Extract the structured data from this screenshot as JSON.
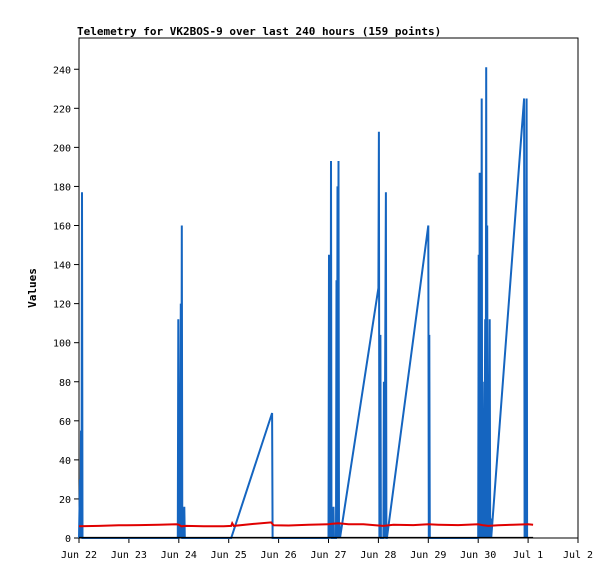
{
  "chart_data": {
    "type": "line",
    "title": "Telemetry for VK2BOS-9 over last 240 hours (159 points)",
    "xlabel": "",
    "ylabel": "Values",
    "x_ticks": [
      "Jun 22",
      "Jun 23",
      "Jun 24",
      "Jun 25",
      "Jun 26",
      "Jun 27",
      "Jun 28",
      "Jun 29",
      "Jun 30",
      "Jul 1",
      "Jul 2"
    ],
    "y_ticks": [
      0,
      20,
      40,
      60,
      80,
      100,
      120,
      140,
      160,
      180,
      200,
      220,
      240
    ],
    "xlim_days": [
      0,
      10
    ],
    "ylim": [
      0,
      256
    ],
    "grid": false,
    "legend": "none",
    "series": [
      {
        "color": "#1565C0",
        "points": [
          [
            0.0,
            0
          ],
          [
            0.02,
            30
          ],
          [
            0.03,
            0
          ],
          [
            0.04,
            55
          ],
          [
            0.05,
            0
          ],
          [
            0.06,
            177
          ],
          [
            0.07,
            0
          ],
          [
            1.98,
            0
          ],
          [
            1.99,
            112
          ],
          [
            2.0,
            0
          ],
          [
            2.01,
            40
          ],
          [
            2.02,
            0
          ],
          [
            2.04,
            120
          ],
          [
            2.05,
            0
          ],
          [
            2.06,
            160
          ],
          [
            2.07,
            0
          ],
          [
            2.1,
            0
          ],
          [
            2.11,
            16
          ],
          [
            2.12,
            0
          ],
          [
            3.05,
            0
          ],
          [
            3.87,
            64
          ],
          [
            3.88,
            0
          ],
          [
            5.0,
            0
          ],
          [
            5.01,
            145
          ],
          [
            5.02,
            0
          ],
          [
            5.03,
            48
          ],
          [
            5.04,
            0
          ],
          [
            5.05,
            193
          ],
          [
            5.06,
            0
          ],
          [
            5.09,
            0
          ],
          [
            5.1,
            16
          ],
          [
            5.11,
            0
          ],
          [
            5.15,
            0
          ],
          [
            5.16,
            132
          ],
          [
            5.17,
            0
          ],
          [
            5.18,
            180
          ],
          [
            5.19,
            0
          ],
          [
            5.2,
            193
          ],
          [
            5.21,
            0
          ],
          [
            5.22,
            8
          ],
          [
            5.23,
            0
          ],
          [
            6.0,
            128
          ],
          [
            6.01,
            208
          ],
          [
            6.02,
            0
          ],
          [
            6.04,
            104
          ],
          [
            6.05,
            0
          ],
          [
            6.1,
            0
          ],
          [
            6.11,
            80
          ],
          [
            6.12,
            0
          ],
          [
            6.15,
            177
          ],
          [
            6.16,
            0
          ],
          [
            6.17,
            0
          ],
          [
            7.0,
            160
          ],
          [
            7.01,
            0
          ],
          [
            7.02,
            104
          ],
          [
            7.03,
            0
          ],
          [
            8.0,
            0
          ],
          [
            8.01,
            145
          ],
          [
            8.02,
            0
          ],
          [
            8.03,
            187
          ],
          [
            8.04,
            0
          ],
          [
            8.05,
            112
          ],
          [
            8.06,
            0
          ],
          [
            8.07,
            225
          ],
          [
            8.08,
            0
          ],
          [
            8.09,
            80
          ],
          [
            8.1,
            0
          ],
          [
            8.11,
            48
          ],
          [
            8.12,
            0
          ],
          [
            8.14,
            112
          ],
          [
            8.15,
            0
          ],
          [
            8.16,
            241
          ],
          [
            8.17,
            0
          ],
          [
            8.18,
            160
          ],
          [
            8.19,
            0
          ],
          [
            8.2,
            16
          ],
          [
            8.21,
            0
          ],
          [
            8.23,
            112
          ],
          [
            8.24,
            0
          ],
          [
            8.25,
            10
          ],
          [
            8.26,
            0
          ],
          [
            8.92,
            225
          ],
          [
            8.93,
            0
          ],
          [
            8.94,
            64
          ],
          [
            8.95,
            0
          ],
          [
            8.97,
            225
          ],
          [
            8.98,
            0
          ]
        ]
      },
      {
        "color": "#E00000",
        "points": [
          [
            0.0,
            6
          ],
          [
            0.4,
            6.2
          ],
          [
            0.8,
            6.5
          ],
          [
            1.2,
            6.6
          ],
          [
            1.6,
            6.8
          ],
          [
            1.95,
            7
          ],
          [
            2.0,
            6.8
          ],
          [
            2.05,
            6.0
          ],
          [
            2.15,
            6.2
          ],
          [
            2.5,
            6.0
          ],
          [
            2.9,
            6.0
          ],
          [
            3.05,
            6.2
          ],
          [
            3.07,
            7.6
          ],
          [
            3.1,
            6.2
          ],
          [
            3.5,
            7.2
          ],
          [
            3.85,
            8.0
          ],
          [
            3.9,
            6.5
          ],
          [
            4.2,
            6.4
          ],
          [
            4.6,
            6.8
          ],
          [
            5.0,
            7.0
          ],
          [
            5.05,
            7.2
          ],
          [
            5.2,
            7.6
          ],
          [
            5.4,
            7.0
          ],
          [
            5.7,
            7.0
          ],
          [
            6.0,
            6.4
          ],
          [
            6.1,
            6.2
          ],
          [
            6.3,
            6.8
          ],
          [
            6.7,
            6.6
          ],
          [
            7.0,
            7.0
          ],
          [
            7.2,
            6.8
          ],
          [
            7.6,
            6.6
          ],
          [
            8.0,
            7.0
          ],
          [
            8.1,
            6.5
          ],
          [
            8.2,
            6.2
          ],
          [
            8.4,
            6.5
          ],
          [
            8.7,
            6.8
          ],
          [
            9.0,
            7.0
          ],
          [
            9.1,
            6.8
          ]
        ]
      },
      {
        "color": "#000000",
        "points": [
          [
            0.0,
            0.2
          ],
          [
            9.1,
            0.2
          ]
        ]
      }
    ]
  }
}
